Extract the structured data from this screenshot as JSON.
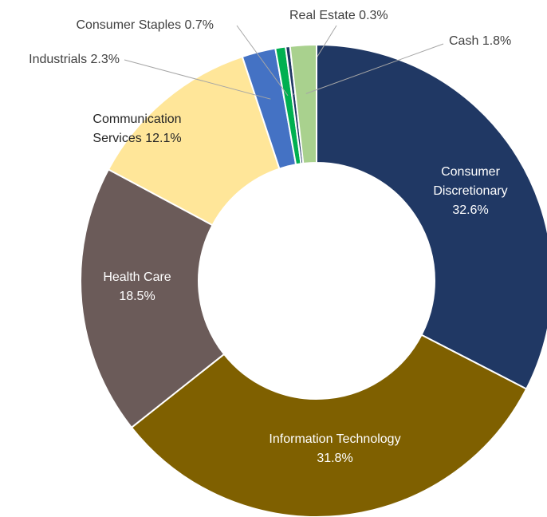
{
  "chart_data": {
    "type": "donut",
    "categories": [
      "Consumer Discretionary",
      "Information Technology",
      "Health Care",
      "Communication Services",
      "Industrials",
      "Consumer Staples",
      "Real Estate",
      "Cash"
    ],
    "values": [
      32.6,
      31.8,
      18.5,
      12.1,
      2.3,
      0.7,
      0.3,
      1.8
    ],
    "value_labels": [
      "32.6%",
      "31.8%",
      "18.5%",
      "12.1%",
      "2.3%",
      "0.7%",
      "0.3%",
      "1.8%"
    ],
    "colors": [
      "#203864",
      "#7f6000",
      "#6b5b59",
      "#ffe699",
      "#4472c4",
      "#00b050",
      "#203864",
      "#a9d18e"
    ]
  }
}
